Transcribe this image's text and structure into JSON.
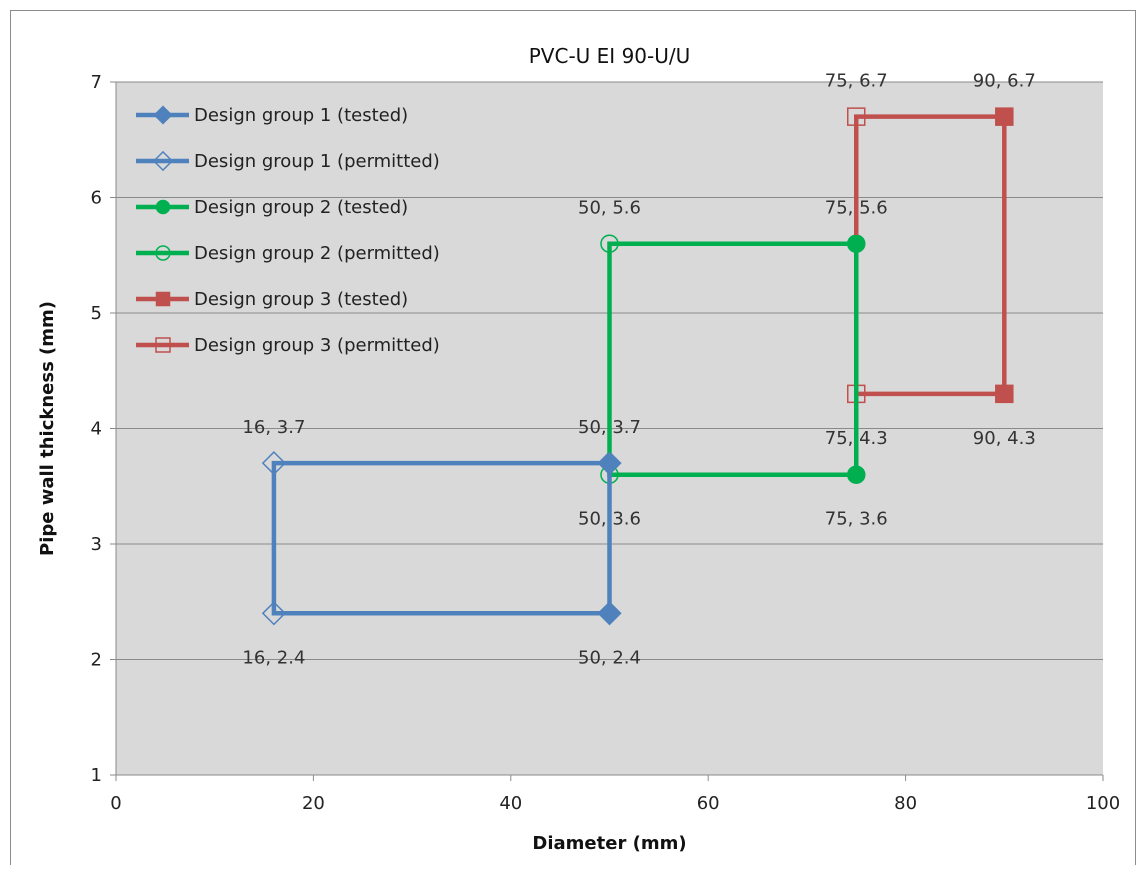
{
  "chart_data": {
    "type": "line",
    "title": "PVC-U EI 90-U/U",
    "xlabel": "Diameter (mm)",
    "ylabel": "Pipe wall thickness (mm)",
    "xlim": [
      0,
      100
    ],
    "ylim": [
      1,
      7
    ],
    "x_ticks": [
      "0",
      "20",
      "40",
      "60",
      "80",
      "100"
    ],
    "y_ticks": [
      "1",
      "2",
      "3",
      "4",
      "5",
      "6",
      "7"
    ],
    "grid": "horizontal",
    "legend_position": "top-left inside plot",
    "plot_background": "#d9d9d9",
    "series": [
      {
        "name": "Design group 1 (tested)",
        "color": "#4f81bd",
        "marker": "diamond",
        "filled": true,
        "points": [
          [
            50,
            3.7
          ],
          [
            50,
            2.4
          ]
        ]
      },
      {
        "name": "Design group 1 (permitted)",
        "color": "#4f81bd",
        "marker": "diamond",
        "filled": false,
        "points": [
          [
            50,
            3.7
          ],
          [
            16,
            3.7
          ],
          [
            16,
            2.4
          ],
          [
            50,
            2.4
          ]
        ]
      },
      {
        "name": "Design group 2 (tested)",
        "color": "#00b050",
        "marker": "circle",
        "filled": true,
        "points": [
          [
            75,
            5.6
          ],
          [
            75,
            3.6
          ]
        ]
      },
      {
        "name": "Design group 2 (permitted)",
        "color": "#00b050",
        "marker": "circle",
        "filled": false,
        "points": [
          [
            75,
            5.6
          ],
          [
            50,
            5.6
          ],
          [
            50,
            3.6
          ],
          [
            75,
            3.6
          ]
        ]
      },
      {
        "name": "Design group 3 (tested)",
        "color": "#c0504d",
        "marker": "square",
        "filled": true,
        "points": [
          [
            90,
            6.7
          ],
          [
            90,
            4.3
          ]
        ]
      },
      {
        "name": "Design group 3 (permitted)",
        "color": "#c0504d",
        "marker": "square",
        "filled": false,
        "points": [
          [
            90,
            6.7
          ],
          [
            75,
            6.7
          ],
          [
            75,
            4.3
          ],
          [
            90,
            4.3
          ]
        ]
      }
    ],
    "annotations": [
      {
        "text": "16, 3.7",
        "x": 16,
        "y": 3.7,
        "pos": "above"
      },
      {
        "text": "50, 3.7",
        "x": 50,
        "y": 3.7,
        "pos": "above"
      },
      {
        "text": "16, 2.4",
        "x": 16,
        "y": 2.4,
        "pos": "below"
      },
      {
        "text": "50, 2.4",
        "x": 50,
        "y": 2.4,
        "pos": "below"
      },
      {
        "text": "50, 5.6",
        "x": 50,
        "y": 5.6,
        "pos": "above"
      },
      {
        "text": "75, 5.6",
        "x": 75,
        "y": 5.6,
        "pos": "above"
      },
      {
        "text": "50, 3.6",
        "x": 50,
        "y": 3.6,
        "pos": "below"
      },
      {
        "text": "75, 3.6",
        "x": 75,
        "y": 3.6,
        "pos": "below"
      },
      {
        "text": "75, 6.7",
        "x": 75,
        "y": 6.7,
        "pos": "above"
      },
      {
        "text": "90, 6.7",
        "x": 90,
        "y": 6.7,
        "pos": "above"
      },
      {
        "text": "75, 4.3",
        "x": 75,
        "y": 4.3,
        "pos": "below"
      },
      {
        "text": "90, 4.3",
        "x": 90,
        "y": 4.3,
        "pos": "below"
      }
    ]
  }
}
